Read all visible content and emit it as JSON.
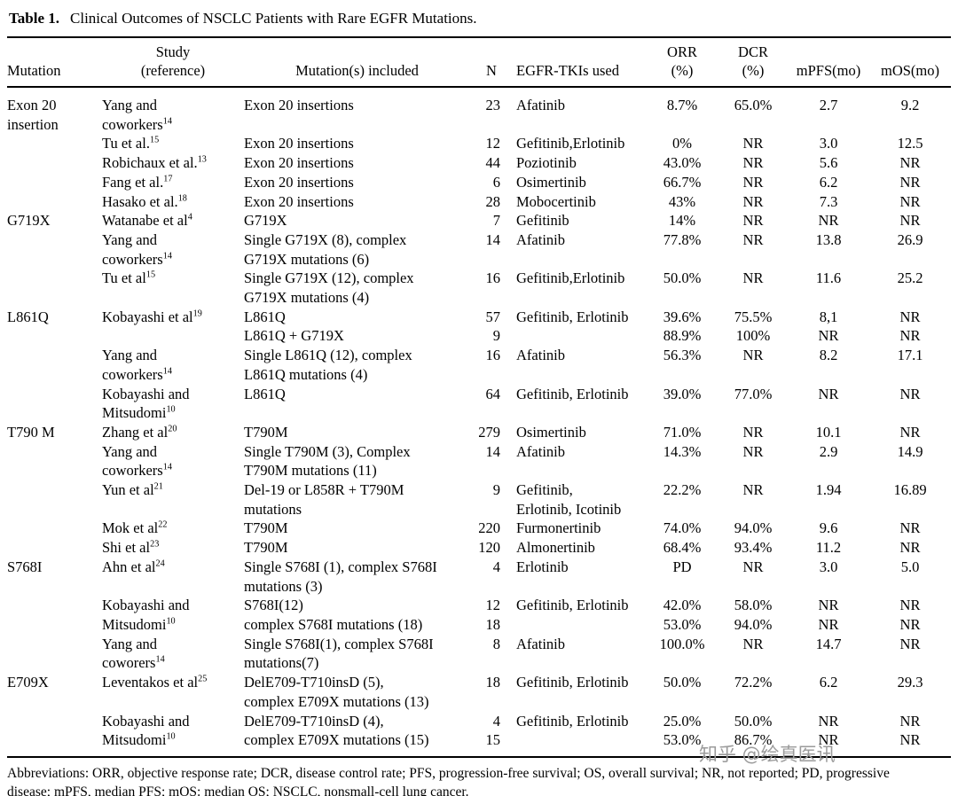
{
  "title": {
    "label": "Table 1.",
    "caption": "Clinical Outcomes of NSCLC Patients with Rare EGFR Mutations."
  },
  "table": {
    "headers": {
      "mutation": "Mutation",
      "study_top": "Study",
      "study_bottom": "(reference)",
      "mutations": "Mutation(s) included",
      "n": "N",
      "tki": "EGFR-TKIs used",
      "orr_top": "ORR",
      "orr_bottom": "(%)",
      "dcr_top": "DCR",
      "dcr_bottom": "(%)",
      "mpfs": "mPFS(mo)",
      "mos": "mOS(mo)"
    },
    "rows": [
      {
        "mutation": "Exon 20\ninsertion",
        "study": "Yang and\ncoworkers",
        "ref": "14",
        "mutations": "Exon 20 insertions",
        "n": "23",
        "tki": "Afatinib",
        "orr": "8.7%",
        "dcr": "65.0%",
        "mpfs": "2.7",
        "mos": "9.2"
      },
      {
        "mutation": "",
        "study": "Tu et al.",
        "ref": "15",
        "mutations": "Exon 20 insertions",
        "n": "12",
        "tki": "Gefitinib,Erlotinib",
        "orr": "0%",
        "dcr": "NR",
        "mpfs": "3.0",
        "mos": "12.5"
      },
      {
        "mutation": "",
        "study": "Robichaux et al.",
        "ref": "13",
        "mutations": "Exon 20 insertions",
        "n": "44",
        "tki": "Poziotinib",
        "orr": "43.0%",
        "dcr": "NR",
        "mpfs": "5.6",
        "mos": "NR"
      },
      {
        "mutation": "",
        "study": "Fang et al.",
        "ref": "17",
        "mutations": "Exon 20 insertions",
        "n": "6",
        "tki": "Osimertinib",
        "orr": "66.7%",
        "dcr": "NR",
        "mpfs": "6.2",
        "mos": "NR"
      },
      {
        "mutation": "",
        "study": "Hasako et al.",
        "ref": "18",
        "mutations": "Exon 20 insertions",
        "n": "28",
        "tki": "Mobocertinib",
        "orr": "43%",
        "dcr": "NR",
        "mpfs": "7.3",
        "mos": "NR"
      },
      {
        "mutation": "G719X",
        "study": "Watanabe et al",
        "ref": "4",
        "mutations": "G719X",
        "n": "7",
        "tki": "Gefitinib",
        "orr": "14%",
        "dcr": "NR",
        "mpfs": "NR",
        "mos": "NR"
      },
      {
        "mutation": "",
        "study": "Yang and\ncoworkers",
        "ref": "14",
        "mutations": "Single G719X (8), complex\nG719X mutations (6)",
        "n": "14",
        "tki": "Afatinib",
        "orr": "77.8%",
        "dcr": "NR",
        "mpfs": "13.8",
        "mos": "26.9"
      },
      {
        "mutation": "",
        "study": "Tu et al",
        "ref": "15",
        "mutations": "Single G719X (12), complex\nG719X mutations (4)",
        "n": "16",
        "tki": "Gefitinib,Erlotinib",
        "orr": "50.0%",
        "dcr": "NR",
        "mpfs": "11.6",
        "mos": "25.2"
      },
      {
        "mutation": "L861Q",
        "study": "Kobayashi et al",
        "ref": "19",
        "mutations": "L861Q",
        "n": "57",
        "tki": "Gefitinib, Erlotinib",
        "orr": "39.6%",
        "dcr": "75.5%",
        "mpfs": "8,1",
        "mos": "NR"
      },
      {
        "mutation": "",
        "study": "",
        "ref": "",
        "mutations": "L861Q + G719X",
        "n": "9",
        "tki": "",
        "orr": "88.9%",
        "dcr": "100%",
        "mpfs": "NR",
        "mos": "NR"
      },
      {
        "mutation": "",
        "study": "Yang and\ncoworkers",
        "ref": "14",
        "mutations": "Single L861Q (12), complex\nL861Q mutations (4)",
        "n": "16",
        "tki": "Afatinib",
        "orr": "56.3%",
        "dcr": "NR",
        "mpfs": "8.2",
        "mos": "17.1"
      },
      {
        "mutation": "",
        "study": "Kobayashi and\nMitsudomi",
        "ref": "10",
        "mutations": "L861Q",
        "n": "64",
        "tki": "Gefitinib, Erlotinib",
        "orr": "39.0%",
        "dcr": "77.0%",
        "mpfs": "NR",
        "mos": "NR"
      },
      {
        "mutation": "T790 M",
        "study": "Zhang et al",
        "ref": "20",
        "mutations": "T790M",
        "n": "279",
        "tki": "Osimertinib",
        "orr": "71.0%",
        "dcr": "NR",
        "mpfs": "10.1",
        "mos": "NR"
      },
      {
        "mutation": "",
        "study": "Yang and\ncoworkers",
        "ref": "14",
        "mutations": "Single T790M (3), Complex\nT790M mutations (11)",
        "n": "14",
        "tki": "Afatinib",
        "orr": "14.3%",
        "dcr": "NR",
        "mpfs": "2.9",
        "mos": "14.9"
      },
      {
        "mutation": "",
        "study": "Yun et al",
        "ref": "21",
        "mutations": "Del-19 or L858R + T790M\nmutations",
        "n": "9",
        "tki": "Gefitinib,\nErlotinib, Icotinib",
        "orr": "22.2%",
        "dcr": "NR",
        "mpfs": "1.94",
        "mos": "16.89"
      },
      {
        "mutation": "",
        "study": "Mok et al",
        "ref": "22",
        "mutations": "T790M",
        "n": "220",
        "tki": "Furmonertinib",
        "orr": "74.0%",
        "dcr": "94.0%",
        "mpfs": "9.6",
        "mos": "NR"
      },
      {
        "mutation": "",
        "study": "Shi et al",
        "ref": "23",
        "mutations": "T790M",
        "n": "120",
        "tki": "Almonertinib",
        "orr": "68.4%",
        "dcr": "93.4%",
        "mpfs": "11.2",
        "mos": "NR"
      },
      {
        "mutation": "S768I",
        "study": "Ahn et al",
        "ref": "24",
        "mutations": "Single S768I (1), complex S768I\nmutations (3)",
        "n": "4",
        "tki": "Erlotinib",
        "orr": "PD",
        "dcr": "NR",
        "mpfs": "3.0",
        "mos": "5.0"
      },
      {
        "mutation": "",
        "study": "Kobayashi and",
        "ref": "",
        "mutations": "S768I(12)",
        "n": "12",
        "tki": "Gefitinib, Erlotinib",
        "orr": "42.0%",
        "dcr": "58.0%",
        "mpfs": "NR",
        "mos": "NR"
      },
      {
        "mutation": "",
        "study": "Mitsudomi",
        "ref": "10",
        "mutations": "complex S768I mutations (18)",
        "n": "18",
        "tki": "",
        "orr": "53.0%",
        "dcr": "94.0%",
        "mpfs": "NR",
        "mos": "NR"
      },
      {
        "mutation": "",
        "study": "Yang and\ncoworers",
        "ref": "14",
        "mutations": "Single S768I(1), complex S768I\nmutations(7)",
        "n": "8",
        "tki": "Afatinib",
        "orr": "100.0%",
        "dcr": "NR",
        "mpfs": "14.7",
        "mos": "NR"
      },
      {
        "mutation": "E709X",
        "study": "Leventakos et al",
        "ref": "25",
        "mutations": "DelE709-T710insD (5),\ncomplex E709X mutations (13)",
        "n": "18",
        "tki": "Gefitinib, Erlotinib",
        "orr": "50.0%",
        "dcr": "72.2%",
        "mpfs": "6.2",
        "mos": "29.3"
      },
      {
        "mutation": "",
        "study": "Kobayashi and",
        "ref": "",
        "mutations": "DelE709-T710insD (4),",
        "n": "4",
        "tki": "Gefitinib, Erlotinib",
        "orr": "25.0%",
        "dcr": "50.0%",
        "mpfs": "NR",
        "mos": "NR"
      },
      {
        "mutation": "",
        "study": "Mitsudomi",
        "ref": "10",
        "mutations": "complex E709X mutations (15)",
        "n": "15",
        "tki": "",
        "orr": "53.0%",
        "dcr": "86.7%",
        "mpfs": "NR",
        "mos": "NR"
      }
    ]
  },
  "footnote": {
    "text": "Abbreviations: ORR, objective response rate; DCR, disease control rate; PFS, progression-free survival; OS, overall survival; NR, not reported; PD, progressive\ndisease; mPFS, median PFS; mOS: median OS; NSCLC, nonsmall-cell lung cancer."
  },
  "watermark": {
    "text": "知乎 @绘真医讯"
  }
}
